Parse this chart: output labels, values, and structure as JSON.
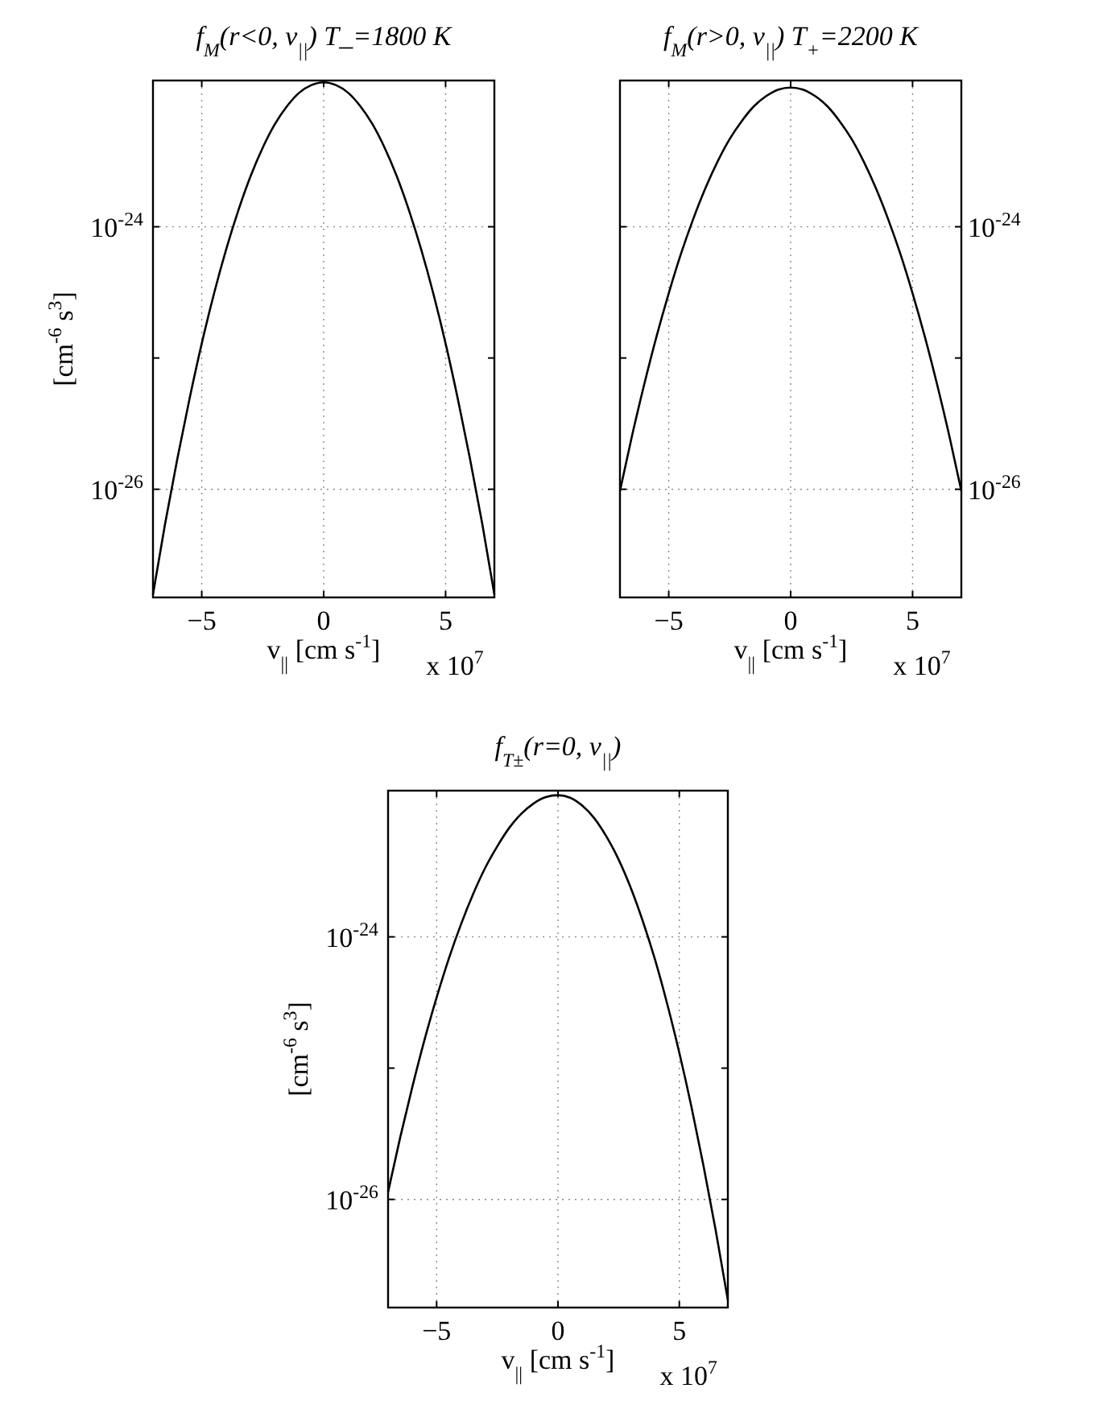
{
  "chart_data": [
    {
      "type": "line",
      "title": "f$_{M}$(r<0, v$_{||}$)  T_=1800 K",
      "xlabel": "v$_{||}$ [cm s$^{-1}$]",
      "ylabel": "[cm$^{-6}$ s$^{3}$]",
      "annotations": [
        "x 10$^{7}$"
      ],
      "log": "y",
      "grid": true,
      "xlim": [
        -7,
        7
      ],
      "ylim": [
        1.5e-27,
        1.3e-23
      ],
      "xticks": [
        {
          "value": -5,
          "label": "−5"
        },
        {
          "value": 0,
          "label": "0"
        },
        {
          "value": 5,
          "label": "5"
        }
      ],
      "yticks": [
        {
          "value": 1e-26,
          "label": "10$^{-26}$"
        },
        {
          "value": 1e-25,
          "label": null
        },
        {
          "value": 1e-24,
          "label": "10$^{-24}$"
        }
      ],
      "series": [
        {
          "color": "#000000",
          "x": [
            -7,
            -6.5,
            -6,
            -5.5,
            -5,
            -4.5,
            -4,
            -3.5,
            -3,
            -2.5,
            -2,
            -1.5,
            -1,
            -0.5,
            0,
            0.5,
            1,
            1.5,
            2,
            2.5,
            3,
            3.5,
            4,
            4.5,
            5,
            5.5,
            6,
            6.5,
            7
          ],
          "values": [
            1.58e-27,
            5.5e-27,
            1.71e-26,
            4.9e-26,
            1.29e-25,
            3.08e-25,
            6.7e-25,
            1.33e-24,
            2.42e-24,
            4e-24,
            6.05e-24,
            8.3e-24,
            1.05e-23,
            1.2e-23,
            1.26e-23,
            1.2e-23,
            1.05e-23,
            8.3e-24,
            6.05e-24,
            4e-24,
            2.42e-24,
            1.33e-24,
            6.7e-25,
            3.08e-25,
            1.29e-25,
            4.9e-26,
            1.71e-26,
            5.5e-27,
            1.58e-27
          ]
        }
      ]
    },
    {
      "type": "line",
      "title": "f$_{M}$(r>0, v$_{||}$)  T$_{+}$=2200 K",
      "xlabel": "v$_{||}$ [cm s$^{-1}$]",
      "annotations": [
        "x 10$^{7}$"
      ],
      "log": "y2",
      "grid": true,
      "xlim": [
        -7,
        7
      ],
      "y2lim": [
        1.5e-27,
        1.3e-23
      ],
      "xticks": [
        {
          "value": -5,
          "label": "−5"
        },
        {
          "value": 0,
          "label": "0"
        },
        {
          "value": 5,
          "label": "5"
        }
      ],
      "y2ticks": [
        {
          "value": 1e-26,
          "label": "10$^{-26}$"
        },
        {
          "value": 1e-25,
          "label": null
        },
        {
          "value": 1e-24,
          "label": "10$^{-24}$"
        }
      ],
      "series": [
        {
          "color": "#000000",
          "axis": "y2",
          "x": [
            -7,
            -6.5,
            -6,
            -5.5,
            -5,
            -4.5,
            -4,
            -3.5,
            -3,
            -2.5,
            -2,
            -1.5,
            -1,
            -0.5,
            0,
            0.5,
            1,
            1.5,
            2,
            2.5,
            3,
            3.5,
            4,
            4.5,
            5,
            5.5,
            6,
            6.5,
            7
          ],
          "values": [
            9.7e-27,
            2.58e-26,
            6.35e-26,
            1.46e-25,
            3.11e-25,
            6.2e-25,
            1.14e-24,
            1.96e-24,
            3.13e-24,
            4.66e-24,
            6.4e-24,
            8.3e-24,
            9.9e-24,
            1.11e-23,
            1.15e-23,
            1.11e-23,
            9.9e-24,
            8.3e-24,
            6.4e-24,
            4.66e-24,
            3.13e-24,
            1.96e-24,
            1.14e-24,
            6.2e-25,
            3.11e-25,
            1.46e-25,
            6.35e-26,
            2.58e-26,
            9.7e-27
          ]
        }
      ]
    },
    {
      "type": "line",
      "title": "f$_{T±}$(r=0, v$_{||}$)",
      "xlabel": "v$_{||}$ [cm s$^{-1}$]",
      "ylabel": "[cm$^{-6}$ s$^{3}$]",
      "annotations": [
        "x 10$^{7}$"
      ],
      "log": "y",
      "grid": true,
      "xlim": [
        -7,
        7
      ],
      "ylim": [
        1.5e-27,
        1.3e-23
      ],
      "xticks": [
        {
          "value": -5,
          "label": "−5"
        },
        {
          "value": 0,
          "label": "0"
        },
        {
          "value": 5,
          "label": "5"
        }
      ],
      "yticks": [
        {
          "value": 1e-26,
          "label": "10$^{-26}$"
        },
        {
          "value": 1e-25,
          "label": null
        },
        {
          "value": 1e-24,
          "label": "10$^{-24}$"
        }
      ],
      "series": [
        {
          "color": "#000000",
          "x": [
            -7,
            -6.5,
            -6,
            -5.5,
            -5,
            -4.5,
            -4,
            -3.5,
            -3,
            -2.5,
            -2,
            -1.5,
            -1,
            -0.5,
            0,
            0.5,
            1,
            1.5,
            2,
            2.5,
            3,
            3.5,
            4,
            4.5,
            5,
            5.5,
            6,
            6.5,
            7
          ],
          "values": [
            1.14e-26,
            2.97e-26,
            7.2e-26,
            1.64e-25,
            3.45e-25,
            6.8e-25,
            1.24e-24,
            2.11e-24,
            3.35e-24,
            4.9e-24,
            6.8e-24,
            8.7e-24,
            1.04e-23,
            1.16e-23,
            1.2e-23,
            1.15e-23,
            1e-23,
            8e-24,
            5.8e-24,
            3.88e-24,
            2.36e-24,
            1.31e-24,
            6.7e-25,
            3.09e-25,
            1.31e-25,
            5.07e-26,
            1.79e-26,
            5.8e-27,
            1.71e-27
          ]
        }
      ]
    }
  ]
}
